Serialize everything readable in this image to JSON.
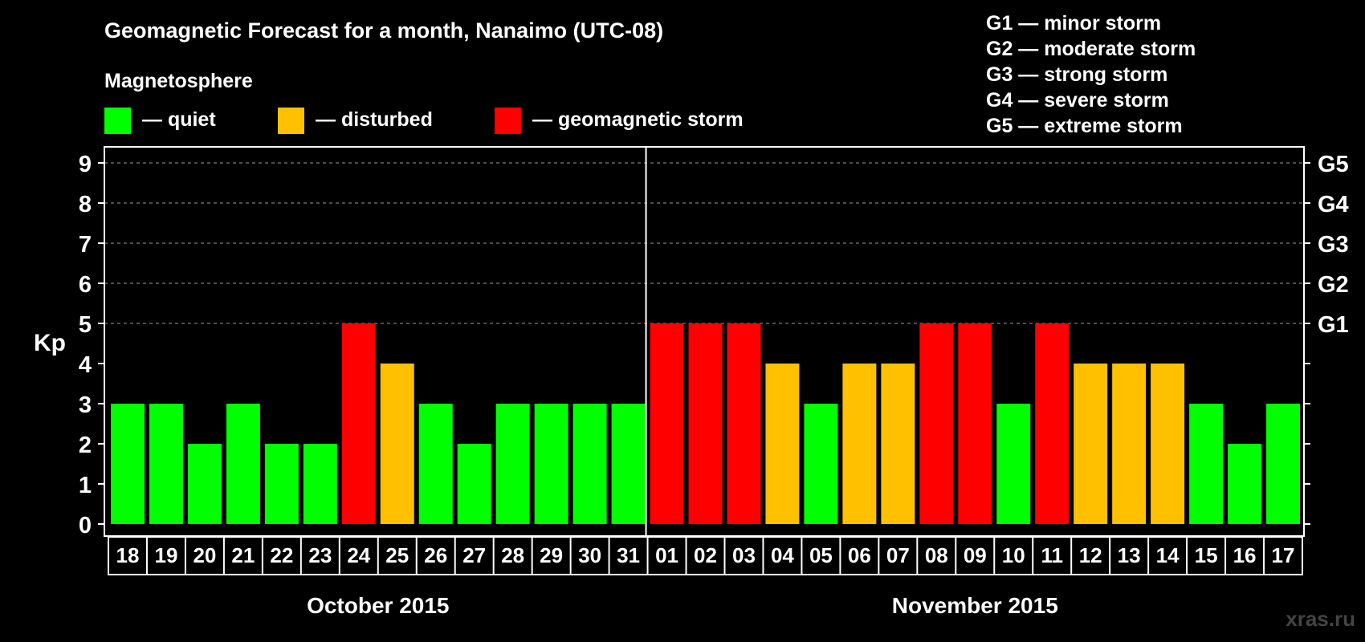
{
  "title": "Geomagnetic Forecast for a month, Nanaimo (UTC-08)",
  "legend": {
    "heading": "Magnetosphere",
    "items": [
      {
        "label": "— quiet",
        "color": "#00ff00"
      },
      {
        "label": "— disturbed",
        "color": "#ffc000"
      },
      {
        "label": "— geomagnetic storm",
        "color": "#ff0000"
      }
    ]
  },
  "storm_scale": [
    "G1 — minor storm",
    "G2 — moderate storm",
    "G3 — strong storm",
    "G4 — severe storm",
    "G5 — extreme storm"
  ],
  "watermark": "xras.ru",
  "chart_data": {
    "type": "bar",
    "ylabel": "Kp",
    "ylim": [
      0,
      9
    ],
    "yticks": [
      "0",
      "1",
      "2",
      "3",
      "4",
      "5",
      "6",
      "7",
      "8",
      "9"
    ],
    "right_axis_labels": [
      {
        "value": 5,
        "label": "G1"
      },
      {
        "value": 6,
        "label": "G2"
      },
      {
        "value": 7,
        "label": "G3"
      },
      {
        "value": 8,
        "label": "G4"
      },
      {
        "value": 9,
        "label": "G5"
      }
    ],
    "grid": "dashed horizontal at 5-9",
    "categories": [
      "18",
      "19",
      "20",
      "21",
      "22",
      "23",
      "24",
      "25",
      "26",
      "27",
      "28",
      "29",
      "30",
      "31",
      "01",
      "02",
      "03",
      "04",
      "05",
      "06",
      "07",
      "08",
      "09",
      "10",
      "11",
      "12",
      "13",
      "14",
      "15",
      "16",
      "17"
    ],
    "values": [
      3,
      3,
      2,
      3,
      2,
      2,
      5,
      4,
      3,
      2,
      3,
      3,
      3,
      3,
      5,
      5,
      5,
      4,
      3,
      4,
      4,
      5,
      5,
      3,
      5,
      4,
      4,
      4,
      3,
      2,
      3
    ],
    "thresholds": {
      "quiet_max": 3,
      "disturbed": 4,
      "storm_min": 5
    },
    "colors": {
      "quiet": "#00ff00",
      "disturbed": "#ffc000",
      "storm": "#ff0000"
    },
    "month_groups": [
      {
        "label": "October 2015",
        "start": 0,
        "end": 13
      },
      {
        "label": "November 2015",
        "start": 14,
        "end": 30
      }
    ]
  }
}
